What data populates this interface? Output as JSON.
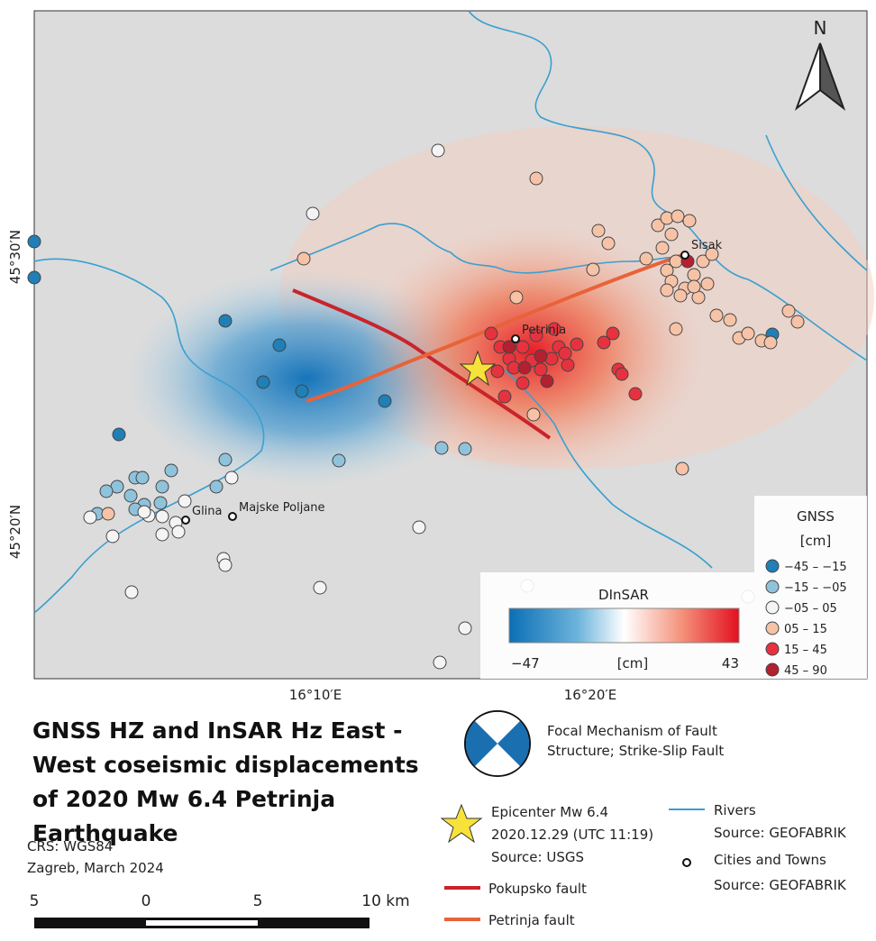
{
  "map": {
    "north_label": "N",
    "lat_labels": [
      "45°30′N",
      "45°20′N"
    ],
    "lon_labels": [
      "16°10′E",
      "16°20′E"
    ],
    "places": [
      "Sisak",
      "Petrinja",
      "Glina",
      "Majske Poljane"
    ]
  },
  "gnss_legend": {
    "title": "GNSS",
    "unit": "[cm]",
    "classes": [
      {
        "label": "−45 – −15",
        "color": "#1f7fb6"
      },
      {
        "label": "−15 – −05",
        "color": "#8fc3dc"
      },
      {
        "label": "−05 – 05",
        "color": "#f4f4f4"
      },
      {
        "label": "05 – 15",
        "color": "#f6c3a7"
      },
      {
        "label": "15 – 45",
        "color": "#e6323f"
      },
      {
        "label": "45 – 90",
        "color": "#b3202f"
      }
    ]
  },
  "dinsar_legend": {
    "title": "DInSAR",
    "min": "−47",
    "unit": "[cm]",
    "max": "43"
  },
  "title": "GNSS HZ and InSAR Hz East - West coseismic displacements of 2020 Mw 6.4 Petrinja Earthquake",
  "focal": "Focal Mechanism of Fault Structure; Strike-Slip Fault",
  "legend": {
    "epicenter": [
      "Epicenter Mw 6.4",
      "2020.12.29 (UTC 11:19)",
      "Source: USGS"
    ],
    "pokupsko": "Pokupsko fault",
    "petrinja": "Petrinja fault",
    "rivers": [
      "Rivers",
      "Source: GEOFABRIK"
    ],
    "cities": [
      "Cities and Towns",
      "Source: GEOFABRIK"
    ]
  },
  "crs": "CRS: WGS84",
  "place_date": "Zagreb, March 2024",
  "scale": [
    "5",
    "0",
    "5",
    "10 km"
  ]
}
